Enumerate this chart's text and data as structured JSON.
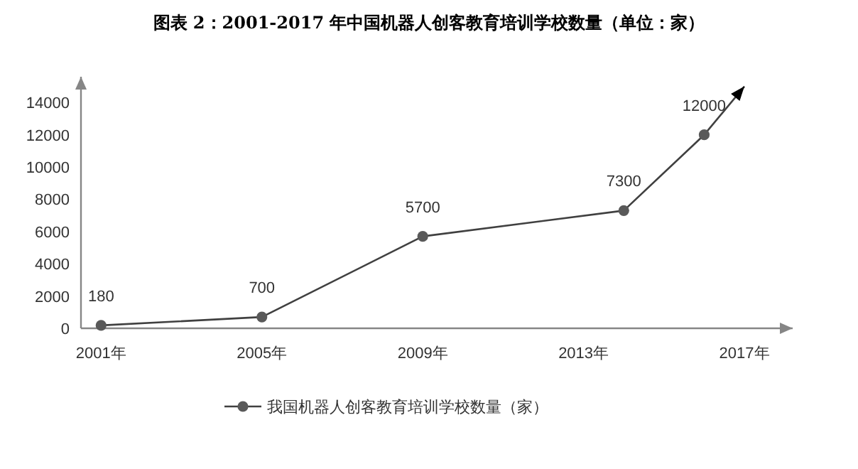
{
  "chart_data": {
    "type": "line",
    "title": "图表 2：2001-2017 年中国机器人创客教育培训学校数量（单位：家）",
    "x": [
      2001,
      2005,
      2009,
      2014,
      2016,
      2017
    ],
    "series": [
      {
        "name": "我国机器人创客教育培训学校数量（家）",
        "color": "#404040",
        "values": [
          180,
          700,
          5700,
          7300,
          12000,
          15000
        ],
        "value_labels": [
          "180",
          "700",
          "5700",
          "7300",
          "12000",
          null
        ]
      }
    ],
    "xlim": [
      2000.5,
      2018.2
    ],
    "xticks": [
      {
        "value": 2001,
        "label": "2001年"
      },
      {
        "value": 2005,
        "label": "2005年"
      },
      {
        "value": 2009,
        "label": "2009年"
      },
      {
        "value": 2013,
        "label": "2013年"
      },
      {
        "value": 2017,
        "label": "2017年"
      }
    ],
    "ylim": [
      0,
      15600
    ],
    "yticks": [
      0,
      2000,
      4000,
      6000,
      8000,
      10000,
      12000,
      14000
    ],
    "grid": false,
    "legend": "bottom",
    "marker": "circle",
    "line_style": "solid"
  }
}
